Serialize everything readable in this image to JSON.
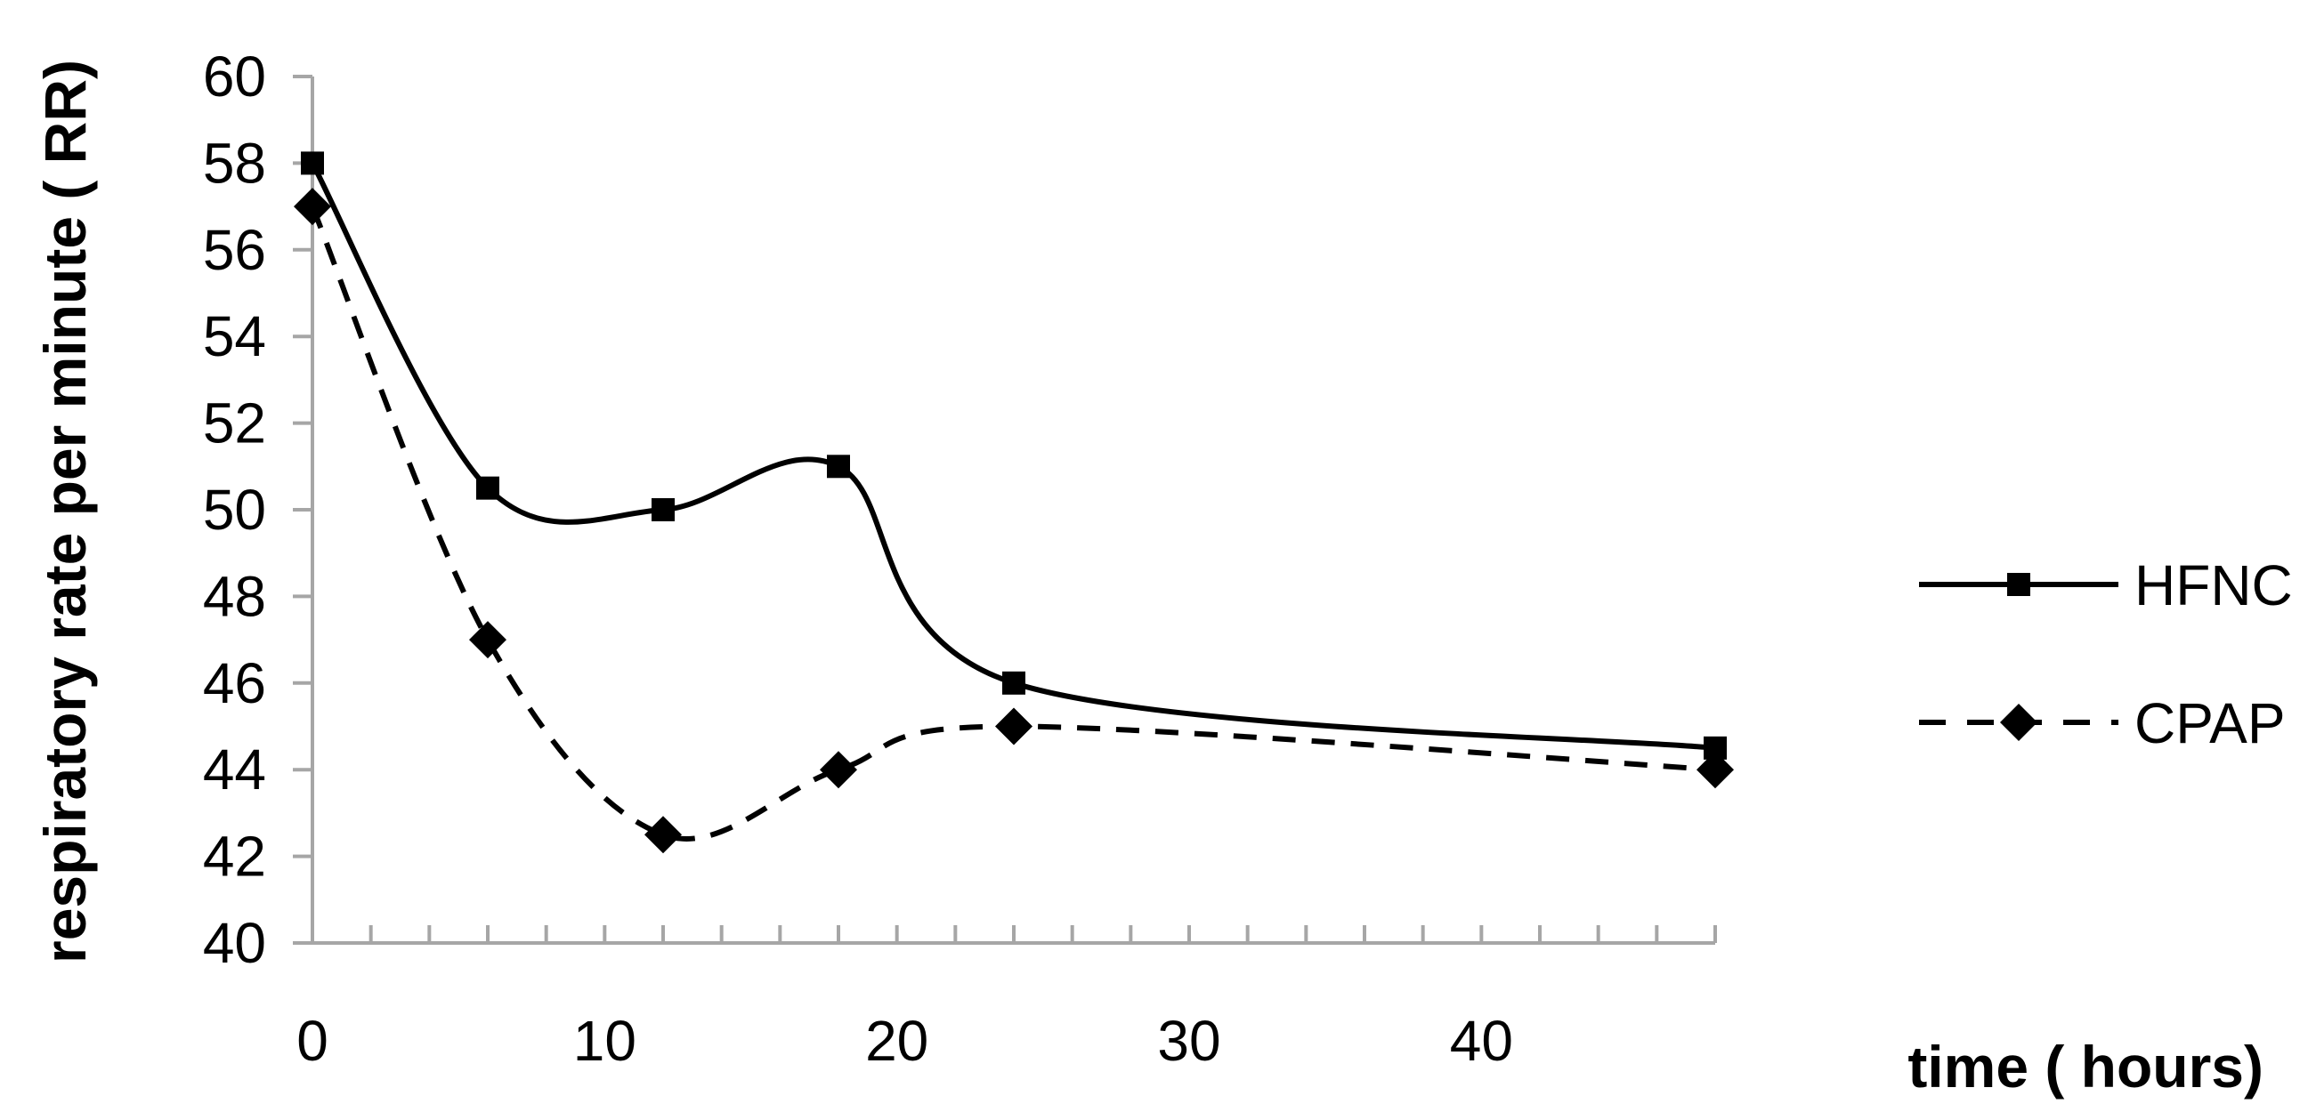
{
  "chart_data": {
    "type": "line",
    "title": "",
    "xlabel": "time ( hours)",
    "ylabel": "respiratory rate per minute ( RR)",
    "xlim": [
      0,
      48
    ],
    "ylim": [
      40,
      60
    ],
    "x_ticks": [
      0,
      10,
      20,
      30,
      40
    ],
    "x_tick_labels": [
      "0",
      "10",
      "20",
      "30",
      "40"
    ],
    "x_minor_step": 2,
    "y_ticks": [
      40,
      42,
      44,
      46,
      48,
      50,
      52,
      54,
      56,
      58,
      60
    ],
    "y_tick_labels": [
      "40",
      "42",
      "44",
      "46",
      "48",
      "50",
      "52",
      "54",
      "56",
      "58",
      "60"
    ],
    "grid": false,
    "legend_position": "right",
    "smooth": true,
    "series": [
      {
        "name": "HFNC",
        "x": [
          0,
          6,
          12,
          18,
          24,
          48
        ],
        "y": [
          58,
          50.5,
          50,
          51,
          46,
          44.5
        ],
        "line_style": "solid",
        "marker": "square",
        "color": "#000000"
      },
      {
        "name": "CPAP",
        "x": [
          0,
          6,
          12,
          18,
          24,
          48
        ],
        "y": [
          57,
          47,
          42.5,
          44,
          45,
          44
        ],
        "line_style": "dashed",
        "marker": "diamond",
        "color": "#000000"
      }
    ]
  }
}
